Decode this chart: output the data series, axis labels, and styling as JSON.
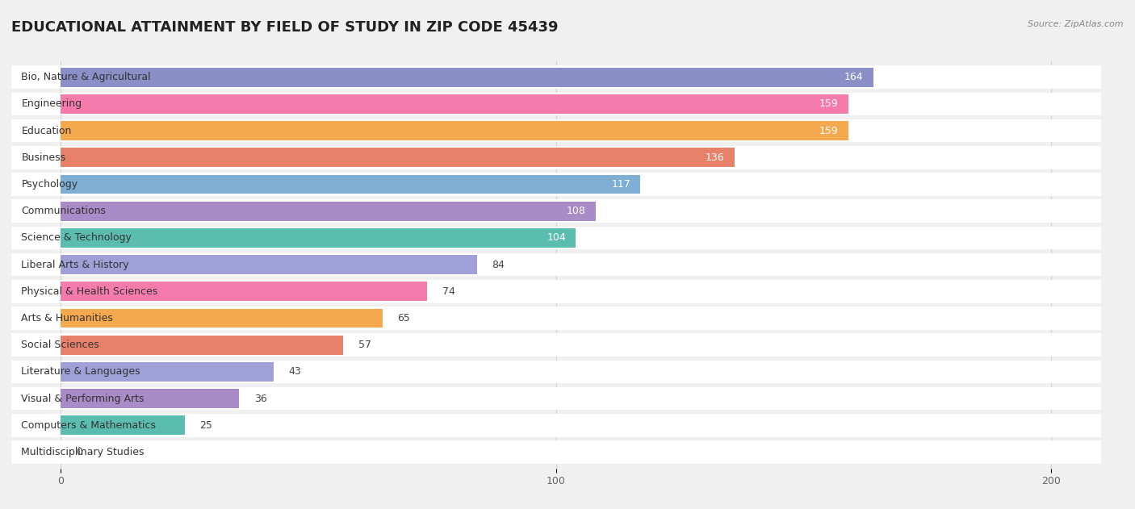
{
  "title": "EDUCATIONAL ATTAINMENT BY FIELD OF STUDY IN ZIP CODE 45439",
  "source": "Source: ZipAtlas.com",
  "categories": [
    "Bio, Nature & Agricultural",
    "Engineering",
    "Education",
    "Business",
    "Psychology",
    "Communications",
    "Science & Technology",
    "Liberal Arts & History",
    "Physical & Health Sciences",
    "Arts & Humanities",
    "Social Sciences",
    "Literature & Languages",
    "Visual & Performing Arts",
    "Computers & Mathematics",
    "Multidisciplinary Studies"
  ],
  "values": [
    164,
    159,
    159,
    136,
    117,
    108,
    104,
    84,
    74,
    65,
    57,
    43,
    36,
    25,
    0
  ],
  "bar_colors": [
    "#8B8FC8",
    "#F47BAA",
    "#F5A94E",
    "#E8816A",
    "#7EAED4",
    "#A98BC8",
    "#5BBCB0",
    "#A0A0D8",
    "#F47BAA",
    "#F5A94E",
    "#E8816A",
    "#A0A0D8",
    "#A98BC8",
    "#5BBCB0",
    "#A0A0D8"
  ],
  "xlim": [
    -10,
    210
  ],
  "xticks": [
    0,
    100,
    200
  ],
  "background_color": "#f0f0f0",
  "bar_background_color": "#ffffff",
  "title_fontsize": 13,
  "label_fontsize": 9,
  "value_fontsize": 9
}
